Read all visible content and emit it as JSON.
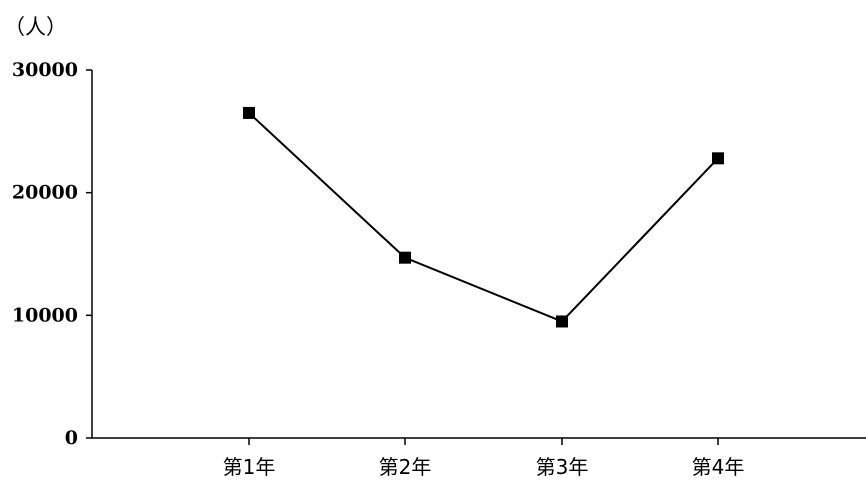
{
  "chart_data": {
    "type": "line",
    "ylabel": "（人）",
    "categories": [
      "第1年",
      "第2年",
      "第3年",
      "第4年"
    ],
    "series": [
      {
        "values": [
          26500,
          14700,
          9500,
          22800
        ]
      }
    ],
    "ylim": [
      0,
      30000
    ],
    "yticks": [
      "0",
      "10000",
      "20000",
      "30000"
    ],
    "grid": false,
    "marker": "square",
    "line_color": "#000000"
  }
}
